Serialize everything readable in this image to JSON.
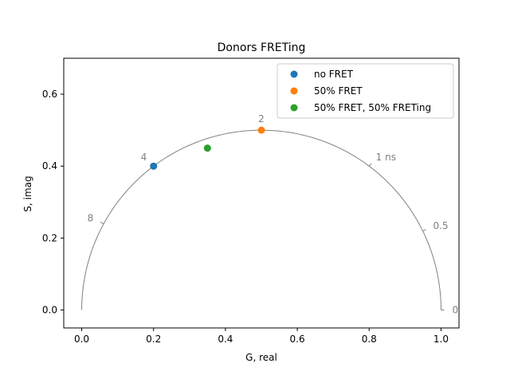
{
  "chart_data": {
    "type": "scatter",
    "title": "Donors FRETing",
    "xlabel": "G, real",
    "ylabel": "S, imag",
    "xlim": [
      -0.05,
      1.05
    ],
    "ylim": [
      -0.05,
      0.7
    ],
    "xticks": [
      0.0,
      0.2,
      0.4,
      0.6,
      0.8,
      1.0
    ],
    "xtick_labels": [
      "0.0",
      "0.2",
      "0.4",
      "0.6",
      "0.8",
      "1.0"
    ],
    "yticks": [
      0.0,
      0.2,
      0.4,
      0.6
    ],
    "ytick_labels": [
      "0.0",
      "0.2",
      "0.4",
      "0.6"
    ],
    "grid": false,
    "legend_position": "top-right",
    "universal_semicircle": {
      "color": "#808080",
      "lifetime_ticks": [
        {
          "label": "0",
          "g": 1.0,
          "s": 0.0
        },
        {
          "label": "0.5",
          "g": 0.95,
          "s": 0.22
        },
        {
          "label": "1 ns",
          "g": 0.8,
          "s": 0.4
        },
        {
          "label": "2",
          "g": 0.5,
          "s": 0.5
        },
        {
          "label": "4",
          "g": 0.2,
          "s": 0.4
        },
        {
          "label": "8",
          "g": 0.06,
          "s": 0.24
        }
      ]
    },
    "series": [
      {
        "name": "no FRET",
        "color": "#1f77b4",
        "x": [
          0.2
        ],
        "y": [
          0.4
        ]
      },
      {
        "name": "50% FRET",
        "color": "#ff7f0e",
        "x": [
          0.5
        ],
        "y": [
          0.5
        ]
      },
      {
        "name": "50% FRET, 50% FRETing",
        "color": "#2ca02c",
        "x": [
          0.35
        ],
        "y": [
          0.45
        ]
      }
    ]
  }
}
